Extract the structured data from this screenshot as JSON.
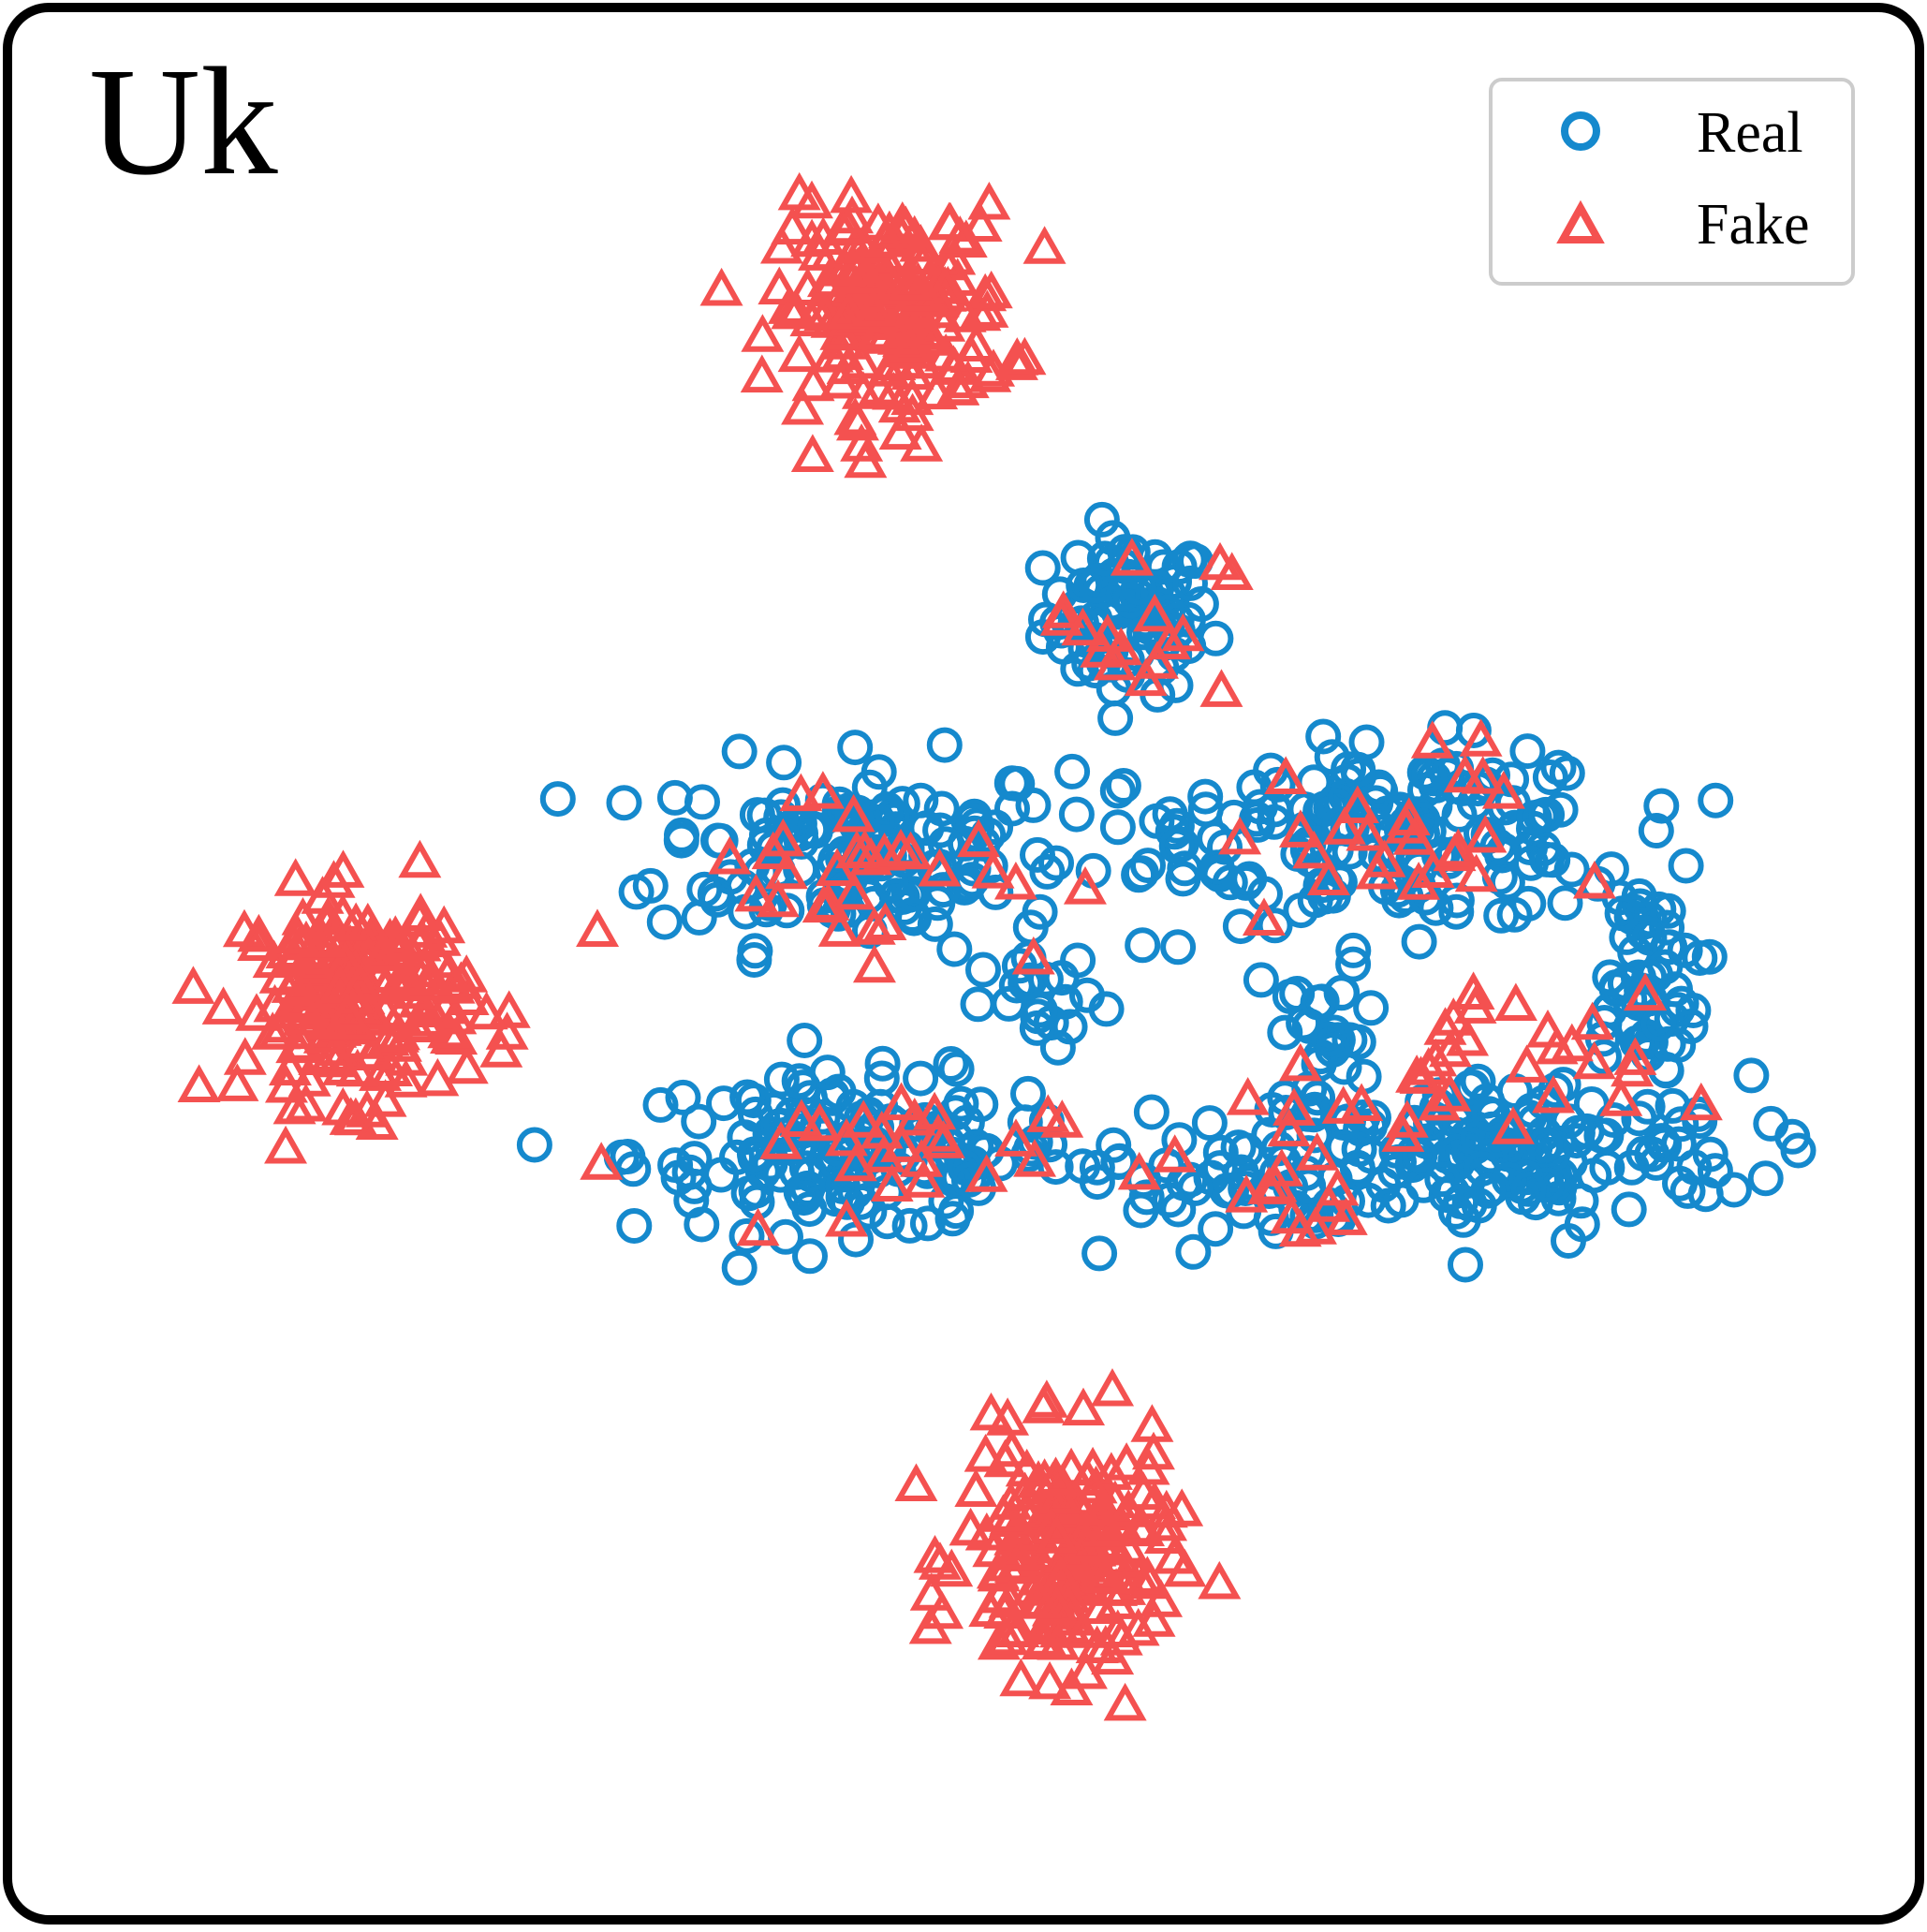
{
  "chart_data": {
    "type": "scatter",
    "title": "Uk",
    "xlabel": "",
    "ylabel": "",
    "xlim": [
      0,
      100
    ],
    "ylim": [
      0,
      100
    ],
    "grid": false,
    "axes_visible": false,
    "legend": {
      "position": "top-right"
    },
    "colors": {
      "Real": "#1589cd",
      "Fake": "#f45150",
      "frame": "#000000",
      "legend_border": "#cccccc"
    },
    "series": [
      {
        "name": "Real",
        "marker": "circle-open",
        "color": "#1589cd",
        "clusters": [
          {
            "cx": 59.5,
            "cy": 70.2,
            "sx": 3.2,
            "sy": 3.0,
            "n": 90
          },
          {
            "cx": 44.0,
            "cy": 56.5,
            "sx": 8.0,
            "sy": 3.6,
            "n": 150
          },
          {
            "cx": 43.5,
            "cy": 39.0,
            "sx": 8.5,
            "sy": 3.0,
            "n": 160
          },
          {
            "cx": 76.0,
            "cy": 57.5,
            "sx": 8.0,
            "sy": 3.4,
            "n": 150
          },
          {
            "cx": 80.5,
            "cy": 39.0,
            "sx": 10.0,
            "sy": 3.0,
            "n": 170
          },
          {
            "cx": 89.0,
            "cy": 49.0,
            "sx": 2.4,
            "sy": 5.0,
            "n": 60
          },
          {
            "cx": 63.0,
            "cy": 57.5,
            "sx": 3.0,
            "sy": 2.0,
            "n": 20
          },
          {
            "cx": 65.0,
            "cy": 37.5,
            "sx": 5.0,
            "sy": 2.5,
            "n": 40
          },
          {
            "cx": 71.0,
            "cy": 46.0,
            "sx": 2.5,
            "sy": 3.0,
            "n": 25
          },
          {
            "cx": 55.0,
            "cy": 47.5,
            "sx": 2.5,
            "sy": 2.0,
            "n": 20
          }
        ]
      },
      {
        "name": "Fake",
        "marker": "triangle-open",
        "color": "#f45150",
        "clusters": [
          {
            "cx": 45.8,
            "cy": 88.0,
            "sx": 4.5,
            "sy": 4.0,
            "n": 180
          },
          {
            "cx": 14.7,
            "cy": 48.2,
            "sx": 4.3,
            "sy": 4.0,
            "n": 190
          },
          {
            "cx": 56.0,
            "cy": 15.5,
            "sx": 4.0,
            "sy": 4.5,
            "n": 180
          },
          {
            "cx": 60.0,
            "cy": 70.0,
            "sx": 3.5,
            "sy": 3.0,
            "n": 16
          },
          {
            "cx": 44.0,
            "cy": 56.0,
            "sx": 8.0,
            "sy": 3.5,
            "n": 30
          },
          {
            "cx": 43.0,
            "cy": 38.5,
            "sx": 8.0,
            "sy": 3.0,
            "n": 26
          },
          {
            "cx": 74.0,
            "cy": 57.5,
            "sx": 6.0,
            "sy": 3.5,
            "n": 26
          },
          {
            "cx": 79.0,
            "cy": 43.0,
            "sx": 7.0,
            "sy": 3.5,
            "n": 34
          },
          {
            "cx": 69.0,
            "cy": 36.5,
            "sx": 3.5,
            "sy": 2.0,
            "n": 12
          }
        ]
      }
    ]
  }
}
